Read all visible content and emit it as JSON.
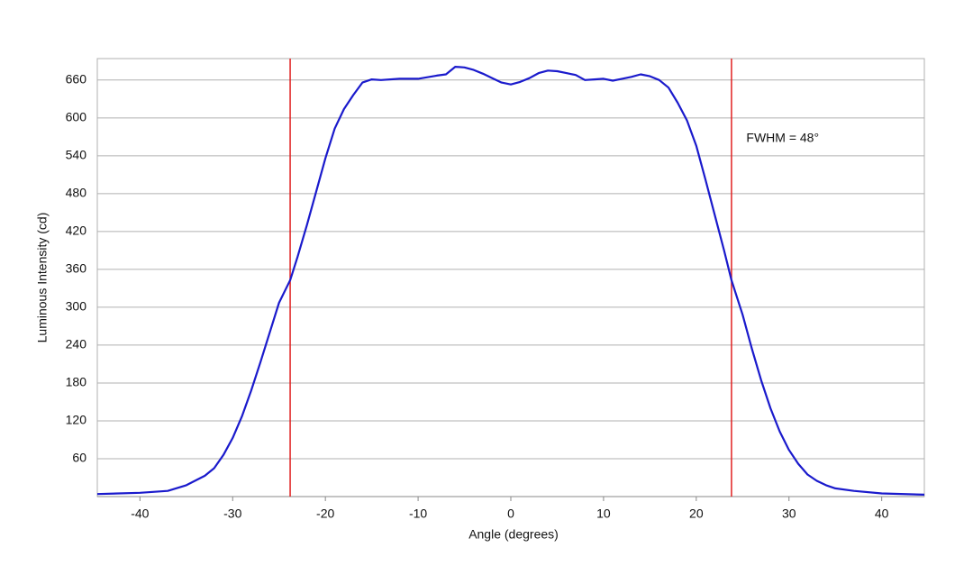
{
  "chart_data": {
    "type": "line",
    "x_label": "Angle (degrees)",
    "y_label": "Luminous Intensity (cd)",
    "xlim": [
      -44.6,
      44.6
    ],
    "ylim": [
      0,
      694
    ],
    "xticks": [
      -40,
      -30,
      -20,
      -10,
      0,
      10,
      20,
      30,
      40
    ],
    "yticks": [
      60,
      120,
      180,
      240,
      300,
      360,
      420,
      480,
      540,
      600,
      660
    ],
    "grid": true,
    "color": "#1a1acc",
    "x": [
      -44.6,
      -40,
      -37,
      -35,
      -33,
      -32,
      -31,
      -30,
      -29,
      -28,
      -27,
      -26,
      -25,
      -23.8,
      -23,
      -22,
      -21,
      -20,
      -19,
      -18,
      -17,
      -16,
      -15,
      -14,
      -12,
      -10,
      -8,
      -7,
      -6,
      -5,
      -4,
      -3,
      -2,
      -1,
      0,
      1,
      2,
      3,
      4,
      5,
      6,
      7,
      8,
      9,
      10,
      11,
      12,
      13,
      14,
      15,
      16,
      17,
      18,
      19,
      20,
      21,
      22,
      23,
      23.8,
      25,
      26,
      27,
      28,
      29,
      30,
      31,
      32,
      33,
      34,
      35,
      37,
      40,
      44.6
    ],
    "values": [
      4,
      6,
      9,
      18,
      33,
      45,
      66,
      93,
      127,
      168,
      213,
      260,
      307,
      343,
      380,
      430,
      483,
      536,
      583,
      614,
      636,
      656,
      661,
      660,
      662,
      662,
      667,
      669,
      681,
      680,
      676,
      670,
      663,
      656,
      653,
      657,
      663,
      671,
      675,
      674,
      671,
      668,
      660,
      661,
      662,
      659,
      662,
      665,
      669,
      666,
      660,
      648,
      624,
      596,
      556,
      502,
      446,
      390,
      343,
      288,
      234,
      184,
      140,
      103,
      74,
      52,
      35,
      25,
      18,
      13,
      9,
      5,
      3
    ],
    "vlines": [
      {
        "x": -23.8,
        "color": "#e02020"
      },
      {
        "x": 23.8,
        "color": "#e02020"
      }
    ],
    "annotation": {
      "text": "FWHM = 48°",
      "x": 25.4,
      "y": 567
    }
  }
}
